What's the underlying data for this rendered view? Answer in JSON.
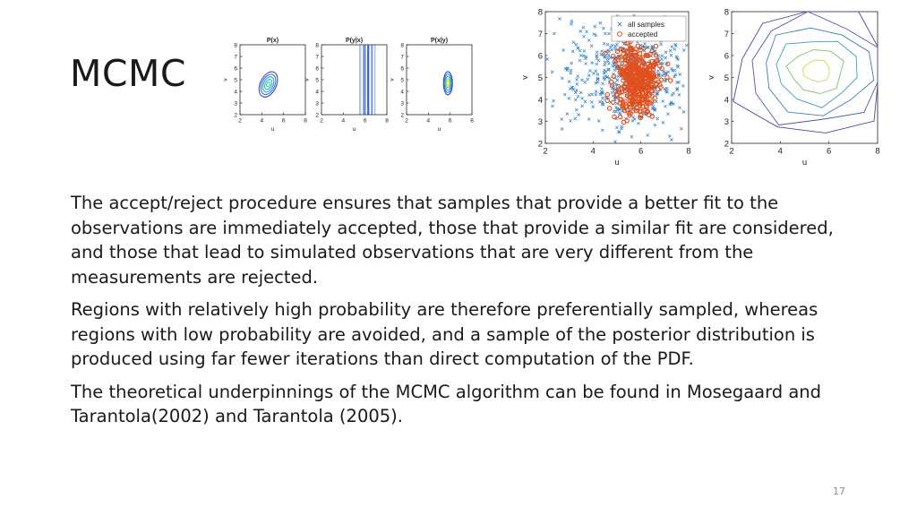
{
  "slide": {
    "title": "MCMC",
    "paragraphs": [
      "The accept/reject procedure ensures that samples that provide a better fit to the observations are immediately accepted, those that provide a similar fit are considered, and those that lead to simulated observations that are very different from the measurements are rejected.",
      "Regions with relatively high probability are therefore preferentially sampled, whereas regions with low probability are avoided, and a sample of the posterior distribution is produced using far fewer iterations than direct computation of the PDF.",
      "The theoretical underpinnings of the MCMC algorithm can be found in Mosegaard and Tarantola(2002) and Tarantola (2005)."
    ],
    "page_number": "17"
  },
  "chart_data": [
    {
      "type": "contour",
      "title": "P(x)",
      "xlabel": "u",
      "ylabel": "v",
      "xlim": [
        2,
        8
      ],
      "ylim": [
        2,
        8
      ],
      "xticks": [
        "2",
        "4",
        "6",
        "8"
      ],
      "yticks": [
        "2",
        "3",
        "4",
        "5",
        "6",
        "7",
        "8"
      ],
      "center": [
        4.6,
        4.6
      ],
      "level_colors": [
        "#3b4fb8",
        "#3d72c9",
        "#2f9fd1",
        "#2bb7b7",
        "#4cc7a5"
      ]
    },
    {
      "type": "bands",
      "title": "P(y|x)",
      "xlabel": "u",
      "ylabel": "v",
      "xlim": [
        2,
        8
      ],
      "ylim": [
        2,
        8
      ],
      "xticks": [
        "2",
        "4",
        "6",
        "8"
      ],
      "yticks": [
        "2",
        "3",
        "4",
        "5",
        "6",
        "7",
        "8"
      ],
      "band_colors": [
        "#2c49c4",
        "#5f8bd8",
        "#9fbdea"
      ]
    },
    {
      "type": "contour",
      "title": "P(x|y)",
      "xlabel": "u",
      "ylabel": "v",
      "xlim": [
        2,
        8
      ],
      "ylim": [
        2,
        8
      ],
      "xticks": [
        "2",
        "4",
        "6",
        "8"
      ],
      "yticks": [
        "2",
        "3",
        "4",
        "5",
        "6",
        "7",
        "8"
      ],
      "center": [
        5.8,
        4.7
      ],
      "level_colors": [
        "#2f3fbf",
        "#2c84d6",
        "#2bb5c2",
        "#86cf6a",
        "#f2e23a"
      ]
    },
    {
      "type": "scatter",
      "xlabel": "u",
      "ylabel": "v",
      "xlim": [
        2,
        8
      ],
      "ylim": [
        2,
        8
      ],
      "xticks": [
        "2",
        "4",
        "6",
        "8"
      ],
      "yticks": [
        "2",
        "3",
        "4",
        "5",
        "6",
        "7",
        "8"
      ],
      "legend_position": "top-right",
      "series": [
        {
          "name": "all samples",
          "marker": "x",
          "color": "#2f7fc1",
          "center": [
            5.4,
            5.2
          ],
          "spread": [
            1.4,
            1.35
          ]
        },
        {
          "name": "accepted",
          "marker": "o",
          "color": "#e0501e",
          "center": [
            5.8,
            4.9
          ],
          "spread": [
            0.45,
            0.85
          ]
        }
      ]
    },
    {
      "type": "contour",
      "xlabel": "u",
      "ylabel": "v",
      "xlim": [
        2,
        8
      ],
      "ylim": [
        2,
        8
      ],
      "xticks": [
        "2",
        "4",
        "6",
        "8"
      ],
      "yticks": [
        "2",
        "3",
        "4",
        "5",
        "6",
        "7",
        "8"
      ],
      "center": [
        5.5,
        5.3
      ],
      "level_colors": [
        "#5a3f9a",
        "#4a5ba8",
        "#3b7fb3",
        "#39a6a8",
        "#7cc36a",
        "#cfd64a"
      ]
    }
  ]
}
